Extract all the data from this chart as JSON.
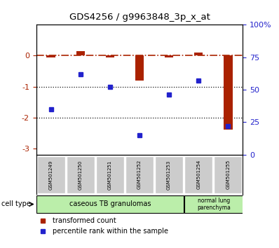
{
  "title": "GDS4256 / g9963848_3p_x_at",
  "samples": [
    "GSM501249",
    "GSM501250",
    "GSM501251",
    "GSM501252",
    "GSM501253",
    "GSM501254",
    "GSM501255"
  ],
  "red_bars": [
    -0.05,
    0.15,
    -0.05,
    -0.8,
    -0.05,
    0.1,
    -2.4
  ],
  "blue_dots": [
    35,
    62,
    52,
    15,
    46,
    57,
    22
  ],
  "left_ylim": [
    -3.2,
    1.0
  ],
  "left_yticks": [
    0,
    -1,
    -2,
    -3
  ],
  "right_ylim": [
    0,
    100
  ],
  "right_yticks": [
    0,
    25,
    50,
    75,
    100
  ],
  "right_yticklabels": [
    "0",
    "25",
    "50",
    "75",
    "100%"
  ],
  "bar_color": "#aa2200",
  "dot_color": "#2222cc",
  "legend_items": [
    {
      "label": "transformed count",
      "color": "#aa2200"
    },
    {
      "label": "percentile rank within the sample",
      "color": "#2222cc"
    }
  ],
  "background_color": "#ffffff",
  "hline_color": "#aa2200",
  "dotted_line_color": "#111111",
  "cell_type_label": "cell type",
  "group1_label": "caseous TB granulomas",
  "group2_label": "normal lung\nparenchyma",
  "group_color": "#bbeeaa",
  "sample_bg": "#cccccc",
  "title_fontsize": 9.5,
  "bar_width": 0.3
}
